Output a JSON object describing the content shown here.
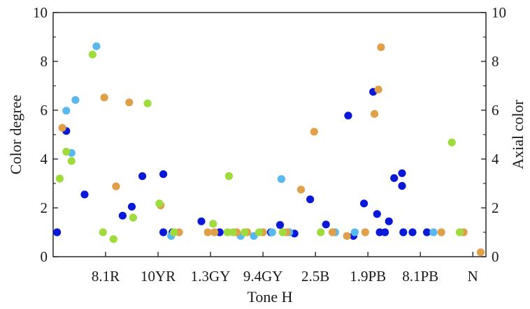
{
  "chart_data": {
    "type": "scatter",
    "title": "",
    "xlabel": "Tone H",
    "ylabel": "Color degree",
    "y2label": "Axial color",
    "categories": [
      "8.1R",
      "10YR",
      "1.3GY",
      "9.4GY",
      "2.5B",
      "1.9PB",
      "8.1PB",
      "N"
    ],
    "category_positions": [
      4,
      8,
      12,
      16,
      20,
      24,
      28,
      32
    ],
    "xlim": [
      0,
      33
    ],
    "ylim": [
      0,
      10
    ],
    "y2lim": [
      0,
      10
    ],
    "yticks": [
      "0",
      "2",
      "4",
      "6",
      "8",
      "10"
    ],
    "y2ticks": [
      "0",
      "2",
      "4",
      "6",
      "8",
      "10"
    ],
    "grid": false,
    "series_colors": [
      "#0a19d6",
      "#5ab9ec",
      "#e0a04a",
      "#9edb3c"
    ],
    "series": [
      {
        "color": "#0a19d6",
        "points": [
          [
            0.3,
            1.0
          ],
          [
            1.0,
            5.15
          ],
          [
            2.4,
            2.55
          ],
          [
            5.3,
            1.68
          ],
          [
            6.0,
            2.05
          ],
          [
            6.8,
            3.3
          ],
          [
            8.4,
            3.38
          ],
          [
            8.4,
            1.0
          ],
          [
            9.1,
            1.0
          ],
          [
            11.3,
            1.45
          ],
          [
            12.7,
            1.0
          ],
          [
            16.6,
            1.0
          ],
          [
            17.3,
            1.3
          ],
          [
            18.4,
            0.95
          ],
          [
            19.6,
            2.35
          ],
          [
            20.8,
            1.32
          ],
          [
            22.5,
            5.78
          ],
          [
            22.9,
            0.85
          ],
          [
            23.7,
            2.18
          ],
          [
            24.4,
            6.75
          ],
          [
            24.7,
            1.75
          ],
          [
            24.9,
            1.0
          ],
          [
            25.3,
            1.0
          ],
          [
            25.6,
            1.45
          ],
          [
            26.0,
            3.22
          ],
          [
            26.6,
            3.42
          ],
          [
            26.6,
            2.9
          ],
          [
            26.7,
            1.0
          ],
          [
            27.4,
            1.0
          ],
          [
            28.5,
            1.0
          ]
        ]
      },
      {
        "color": "#5ab9ec",
        "points": [
          [
            1.0,
            5.98
          ],
          [
            1.4,
            4.25
          ],
          [
            1.7,
            6.42
          ],
          [
            3.3,
            8.62
          ],
          [
            9.0,
            0.85
          ],
          [
            14.3,
            0.85
          ],
          [
            15.3,
            0.85
          ],
          [
            16.7,
            1.0
          ],
          [
            17.4,
            3.18
          ],
          [
            18.0,
            1.0
          ],
          [
            21.5,
            1.0
          ],
          [
            23.0,
            1.0
          ],
          [
            29.0,
            1.0
          ]
        ]
      },
      {
        "color": "#e0a04a",
        "points": [
          [
            0.7,
            5.28
          ],
          [
            3.9,
            6.52
          ],
          [
            4.8,
            2.88
          ],
          [
            5.8,
            6.32
          ],
          [
            8.2,
            2.1
          ],
          [
            9.6,
            1.0
          ],
          [
            11.8,
            1.0
          ],
          [
            12.3,
            1.0
          ],
          [
            14.0,
            1.0
          ],
          [
            14.8,
            1.0
          ],
          [
            16.0,
            1.0
          ],
          [
            17.8,
            1.0
          ],
          [
            18.9,
            2.75
          ],
          [
            19.9,
            5.12
          ],
          [
            21.3,
            1.0
          ],
          [
            22.4,
            0.85
          ],
          [
            23.8,
            1.0
          ],
          [
            24.5,
            5.85
          ],
          [
            24.8,
            6.85
          ],
          [
            25.0,
            8.58
          ],
          [
            29.6,
            1.0
          ],
          [
            31.3,
            1.0
          ],
          [
            32.6,
            0.18
          ]
        ]
      },
      {
        "color": "#9edb3c",
        "points": [
          [
            0.5,
            3.2
          ],
          [
            1.0,
            4.3
          ],
          [
            1.4,
            3.92
          ],
          [
            3.0,
            8.28
          ],
          [
            3.8,
            1.0
          ],
          [
            4.6,
            0.72
          ],
          [
            6.1,
            1.6
          ],
          [
            7.2,
            6.28
          ],
          [
            8.1,
            2.18
          ],
          [
            9.2,
            1.0
          ],
          [
            12.2,
            1.35
          ],
          [
            13.3,
            1.0
          ],
          [
            13.4,
            3.3
          ],
          [
            13.7,
            1.0
          ],
          [
            14.6,
            1.0
          ],
          [
            15.7,
            1.0
          ],
          [
            17.5,
            1.0
          ],
          [
            20.4,
            1.0
          ],
          [
            30.4,
            4.68
          ],
          [
            31.0,
            1.0
          ]
        ]
      }
    ]
  }
}
